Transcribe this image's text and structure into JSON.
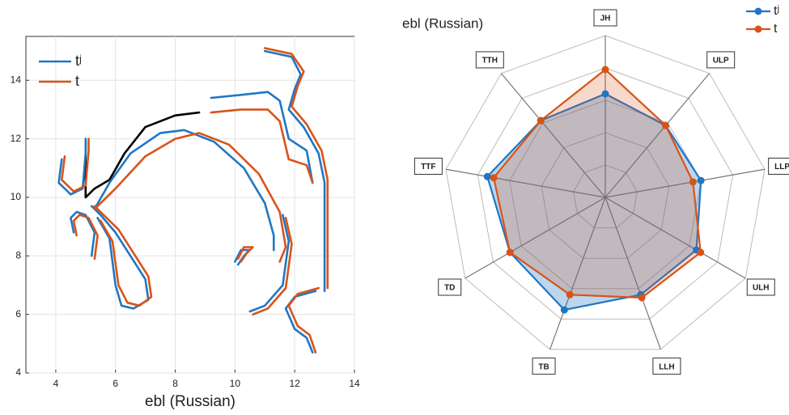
{
  "chart_data": [
    {
      "type": "line",
      "xlabel": "ebl (Russian)",
      "xlim": [
        3,
        14
      ],
      "ylim": [
        4,
        15.5
      ],
      "xticks": [
        4,
        6,
        8,
        10,
        12,
        14
      ],
      "yticks": [
        4,
        6,
        8,
        10,
        12,
        14
      ],
      "grid": true,
      "legend": "upper left",
      "series": [
        {
          "color": "#000000",
          "x": [
            5.0,
            5.0,
            5.0,
            5.3,
            5.8,
            6.3,
            7.0,
            8.0,
            8.8
          ],
          "values": [
            11.9,
            10.5,
            10.0,
            10.3,
            10.6,
            11.5,
            12.4,
            12.8,
            12.9
          ]
        },
        {
          "name": "tʲ",
          "color": "#1f77c4",
          "x": [
            5.3,
            5.8,
            6.5,
            7.5,
            8.3,
            9.3,
            10.3,
            11.0,
            11.3,
            11.3,
            null,
            5.4,
            5.8,
            6.0,
            6.2,
            6.6,
            7.1,
            7.0,
            6.5,
            6.0,
            5.5,
            5.2,
            null,
            4.6,
            4.5,
            4.7,
            5.0,
            5.3,
            5.2,
            null,
            11.6,
            11.8,
            11.6,
            11.0,
            10.5,
            null,
            4.2,
            4.1,
            4.5,
            4.9,
            5.0,
            5.0,
            null,
            9.2,
            10.2,
            11.1,
            11.5,
            11.8,
            12.4,
            12.6,
            null,
            11.0,
            11.9,
            12.2,
            12.0,
            11.8,
            12.3,
            12.8,
            13.0,
            13.0,
            null,
            12.7,
            12.0,
            11.7,
            12.0,
            12.4,
            12.6,
            null,
            10.0,
            10.2,
            10.5,
            10.3,
            10.1
          ],
          "values": [
            9.6,
            10.5,
            11.5,
            12.2,
            12.3,
            11.9,
            11.0,
            9.8,
            8.7,
            8.2,
            null,
            9.3,
            8.6,
            7.0,
            6.3,
            6.2,
            6.5,
            7.2,
            8.0,
            8.8,
            9.4,
            9.7,
            null,
            8.8,
            9.3,
            9.5,
            9.4,
            8.8,
            8.0,
            null,
            9.4,
            8.5,
            7.0,
            6.3,
            6.1,
            null,
            11.3,
            10.5,
            10.1,
            10.3,
            11.5,
            12.0,
            null,
            13.4,
            13.5,
            13.6,
            13.3,
            12.0,
            11.6,
            10.5,
            null,
            15.0,
            14.8,
            14.2,
            13.7,
            13.0,
            12.4,
            11.5,
            10.5,
            6.8,
            null,
            6.8,
            6.6,
            6.2,
            5.5,
            5.2,
            4.7,
            null,
            7.8,
            8.2,
            8.2,
            8.0,
            7.7
          ]
        },
        {
          "name": "t",
          "color": "#d95319",
          "x": [
            5.3,
            6.0,
            7.0,
            8.0,
            8.8,
            9.8,
            10.8,
            11.5,
            11.7,
            11.5,
            null,
            5.5,
            5.9,
            6.1,
            6.4,
            6.8,
            7.2,
            7.1,
            6.6,
            6.1,
            5.6,
            5.3,
            null,
            4.7,
            4.6,
            4.8,
            5.1,
            5.4,
            5.3,
            null,
            11.7,
            11.9,
            11.7,
            11.1,
            10.6,
            null,
            4.3,
            4.2,
            4.6,
            5.0,
            5.1,
            5.1,
            null,
            9.2,
            10.2,
            11.1,
            11.5,
            11.8,
            12.4,
            12.6,
            null,
            11.0,
            11.9,
            12.3,
            12.1,
            11.9,
            12.4,
            12.9,
            13.1,
            13.1,
            null,
            12.8,
            12.1,
            11.8,
            12.1,
            12.5,
            12.7,
            null,
            10.1,
            10.3,
            10.6,
            10.4,
            10.2
          ],
          "values": [
            9.6,
            10.3,
            11.4,
            12.0,
            12.2,
            11.8,
            10.8,
            9.5,
            8.3,
            7.8,
            null,
            9.2,
            8.5,
            7.0,
            6.4,
            6.3,
            6.6,
            7.3,
            8.1,
            8.9,
            9.4,
            9.7,
            null,
            8.7,
            9.2,
            9.4,
            9.3,
            8.7,
            7.9,
            null,
            9.3,
            8.4,
            6.9,
            6.2,
            6.0,
            null,
            11.4,
            10.6,
            10.2,
            10.4,
            11.6,
            12.0,
            null,
            12.9,
            13.0,
            13.0,
            12.6,
            11.3,
            11.1,
            10.5,
            null,
            15.1,
            14.9,
            14.3,
            13.8,
            13.1,
            12.5,
            11.6,
            10.6,
            6.9,
            null,
            6.9,
            6.7,
            6.3,
            5.6,
            5.3,
            4.7,
            null,
            7.9,
            8.3,
            8.3,
            8.1,
            7.8
          ]
        }
      ]
    },
    {
      "type": "radar",
      "title": "ebl (Russian)",
      "categories": [
        "JH",
        "ULP",
        "LLP",
        "ULH",
        "LLH",
        "TB",
        "TD",
        "TTF",
        "TTH"
      ],
      "rlim": [
        0,
        5
      ],
      "rings": 5,
      "legend": "upper right",
      "series": [
        {
          "name": "tʲ",
          "color": "#1f77c4",
          "values": [
            3.2,
            2.9,
            3.0,
            3.25,
            3.2,
            3.7,
            3.4,
            3.7,
            3.1
          ]
        },
        {
          "name": "t",
          "color": "#d95319",
          "values": [
            3.95,
            2.9,
            2.75,
            3.4,
            3.3,
            3.2,
            3.4,
            3.5,
            3.1
          ]
        }
      ]
    }
  ]
}
